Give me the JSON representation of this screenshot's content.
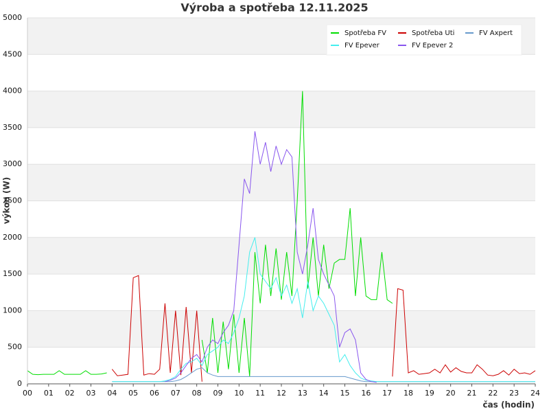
{
  "chart_data": {
    "type": "line",
    "title": "Výroba a spotřeba 12.11.2025",
    "x_label": "čas (hodin)",
    "y_label": "výkon (W)",
    "x": [
      0,
      0.25,
      0.5,
      0.75,
      1,
      1.25,
      1.5,
      1.75,
      2,
      2.25,
      2.5,
      2.75,
      3,
      3.25,
      3.5,
      3.75,
      4,
      4.25,
      4.5,
      4.75,
      5,
      5.25,
      5.5,
      5.75,
      6,
      6.25,
      6.5,
      6.75,
      7,
      7.25,
      7.5,
      7.75,
      8,
      8.25,
      8.5,
      8.75,
      9,
      9.25,
      9.5,
      9.75,
      10,
      10.25,
      10.5,
      10.75,
      11,
      11.25,
      11.5,
      11.75,
      12,
      12.25,
      12.5,
      12.75,
      13,
      13.25,
      13.5,
      13.75,
      14,
      14.25,
      14.5,
      14.75,
      15,
      15.25,
      15.5,
      15.75,
      16,
      16.25,
      16.5,
      16.75,
      17,
      17.25,
      17.5,
      17.75,
      18,
      18.25,
      18.5,
      18.75,
      19,
      19.25,
      19.5,
      19.75,
      20,
      20.25,
      20.5,
      20.75,
      21,
      21.25,
      21.5,
      21.75,
      22,
      22.25,
      22.5,
      22.75,
      23,
      23.25,
      23.5,
      23.75,
      24
    ],
    "series": [
      {
        "name": "Spotřeba FV",
        "color": "#00dd00",
        "values": [
          180,
          130,
          125,
          130,
          130,
          130,
          180,
          130,
          130,
          130,
          130,
          180,
          130,
          130,
          135,
          150,
          null,
          null,
          null,
          null,
          null,
          null,
          null,
          null,
          null,
          null,
          null,
          null,
          null,
          null,
          null,
          null,
          null,
          600,
          150,
          900,
          150,
          850,
          200,
          950,
          150,
          900,
          100,
          1800,
          1100,
          1900,
          1200,
          1850,
          1150,
          1800,
          1200,
          2500,
          4000,
          1300,
          2000,
          1200,
          1900,
          1300,
          1650,
          1700,
          1700,
          2400,
          1200,
          2000,
          1200,
          1150,
          1150,
          1800,
          1150,
          1100,
          null,
          null,
          null,
          null,
          null,
          null,
          null,
          null,
          null,
          null,
          null,
          null,
          null,
          null,
          null,
          null,
          null,
          null,
          null,
          null,
          null,
          null,
          null,
          null,
          null,
          null,
          null
        ]
      },
      {
        "name": "Spotřeba Uti",
        "color": "#cc0000",
        "values": [
          null,
          null,
          null,
          null,
          null,
          null,
          null,
          null,
          null,
          null,
          null,
          null,
          null,
          null,
          null,
          null,
          200,
          110,
          120,
          130,
          1450,
          1480,
          120,
          140,
          130,
          200,
          1100,
          150,
          1000,
          120,
          1050,
          150,
          1000,
          30,
          null,
          null,
          null,
          null,
          null,
          null,
          null,
          null,
          null,
          null,
          null,
          null,
          null,
          null,
          null,
          null,
          null,
          null,
          null,
          null,
          null,
          null,
          null,
          null,
          null,
          null,
          null,
          null,
          null,
          null,
          null,
          null,
          null,
          null,
          null,
          100,
          1300,
          1280,
          150,
          180,
          130,
          140,
          150,
          200,
          150,
          260,
          160,
          220,
          170,
          150,
          150,
          260,
          200,
          120,
          110,
          130,
          180,
          120,
          200,
          140,
          150,
          130,
          180
        ]
      },
      {
        "name": "FV Axpert",
        "color": "#6699cc",
        "values": [
          null,
          null,
          null,
          null,
          null,
          null,
          null,
          null,
          null,
          null,
          null,
          null,
          null,
          null,
          null,
          null,
          30,
          30,
          30,
          30,
          30,
          30,
          30,
          30,
          30,
          30,
          30,
          30,
          40,
          60,
          100,
          150,
          200,
          220,
          150,
          120,
          100,
          100,
          100,
          100,
          100,
          100,
          100,
          100,
          100,
          100,
          100,
          100,
          100,
          100,
          100,
          100,
          100,
          100,
          100,
          100,
          100,
          100,
          100,
          100,
          100,
          80,
          60,
          40,
          30,
          30,
          30,
          30,
          30,
          30,
          30,
          30,
          30,
          30,
          30,
          30,
          30,
          30,
          30,
          30,
          30,
          30,
          30,
          30,
          30,
          30,
          30,
          30,
          30,
          30,
          30,
          30,
          30,
          30,
          30,
          30,
          30
        ]
      },
      {
        "name": "FV Epever",
        "color": "#44eeee",
        "values": [
          null,
          null,
          null,
          null,
          null,
          null,
          null,
          null,
          null,
          null,
          null,
          null,
          null,
          null,
          null,
          null,
          30,
          30,
          30,
          30,
          30,
          30,
          30,
          30,
          30,
          30,
          40,
          60,
          100,
          200,
          280,
          300,
          350,
          250,
          400,
          450,
          500,
          600,
          550,
          700,
          900,
          1200,
          1800,
          2000,
          1500,
          1400,
          1300,
          1450,
          1200,
          1350,
          1100,
          1300,
          900,
          1400,
          1000,
          1200,
          1100,
          950,
          800,
          300,
          400,
          250,
          150,
          80,
          50,
          40,
          30,
          30,
          30,
          30,
          30,
          30,
          30,
          30,
          30,
          30,
          30,
          30,
          30,
          30,
          30,
          30,
          30,
          30,
          30,
          30,
          30,
          30,
          30,
          30,
          30,
          30,
          30,
          30,
          30,
          30,
          30
        ]
      },
      {
        "name": "FV Epever 2",
        "color": "#8855ee",
        "values": [
          null,
          null,
          null,
          null,
          null,
          null,
          null,
          null,
          null,
          null,
          null,
          null,
          null,
          null,
          null,
          null,
          null,
          null,
          null,
          null,
          null,
          null,
          null,
          null,
          null,
          null,
          30,
          50,
          80,
          150,
          250,
          350,
          400,
          300,
          500,
          600,
          550,
          700,
          800,
          1000,
          1900,
          2800,
          2600,
          3450,
          3000,
          3300,
          2900,
          3250,
          3000,
          3200,
          3100,
          1800,
          1500,
          1900,
          2400,
          1700,
          1500,
          1350,
          1200,
          500,
          700,
          750,
          600,
          150,
          60,
          30,
          20,
          null,
          null,
          null,
          null,
          null,
          null,
          null,
          null,
          null,
          null,
          null,
          null,
          null,
          null,
          null,
          null,
          null,
          null,
          null,
          null,
          null,
          null,
          null,
          null,
          null,
          null,
          null,
          null,
          null,
          null
        ]
      }
    ],
    "xlim": [
      0,
      24
    ],
    "ylim": [
      0,
      5000
    ],
    "xticks": [
      {
        "value": 0,
        "label": "00"
      },
      {
        "value": 1,
        "label": "01"
      },
      {
        "value": 2,
        "label": "02"
      },
      {
        "value": 3,
        "label": "03"
      },
      {
        "value": 4,
        "label": "04"
      },
      {
        "value": 5,
        "label": "05"
      },
      {
        "value": 6,
        "label": "06"
      },
      {
        "value": 7,
        "label": "07"
      },
      {
        "value": 8,
        "label": "08"
      },
      {
        "value": 9,
        "label": "09"
      },
      {
        "value": 10,
        "label": "10"
      },
      {
        "value": 11,
        "label": "11"
      },
      {
        "value": 12,
        "label": "12"
      },
      {
        "value": 13,
        "label": "13"
      },
      {
        "value": 14,
        "label": "14"
      },
      {
        "value": 15,
        "label": "15"
      },
      {
        "value": 16,
        "label": "16"
      },
      {
        "value": 17,
        "label": "17"
      },
      {
        "value": 18,
        "label": "18"
      },
      {
        "value": 19,
        "label": "19"
      },
      {
        "value": 20,
        "label": "20"
      },
      {
        "value": 21,
        "label": "21"
      },
      {
        "value": 22,
        "label": "22"
      },
      {
        "value": 23,
        "label": "23"
      },
      {
        "value": 24,
        "label": "24"
      }
    ],
    "yticks": [
      0,
      500,
      1000,
      1500,
      2000,
      2500,
      3000,
      3500,
      4000,
      4500,
      5000
    ],
    "grid": true,
    "legend": "upper right"
  }
}
